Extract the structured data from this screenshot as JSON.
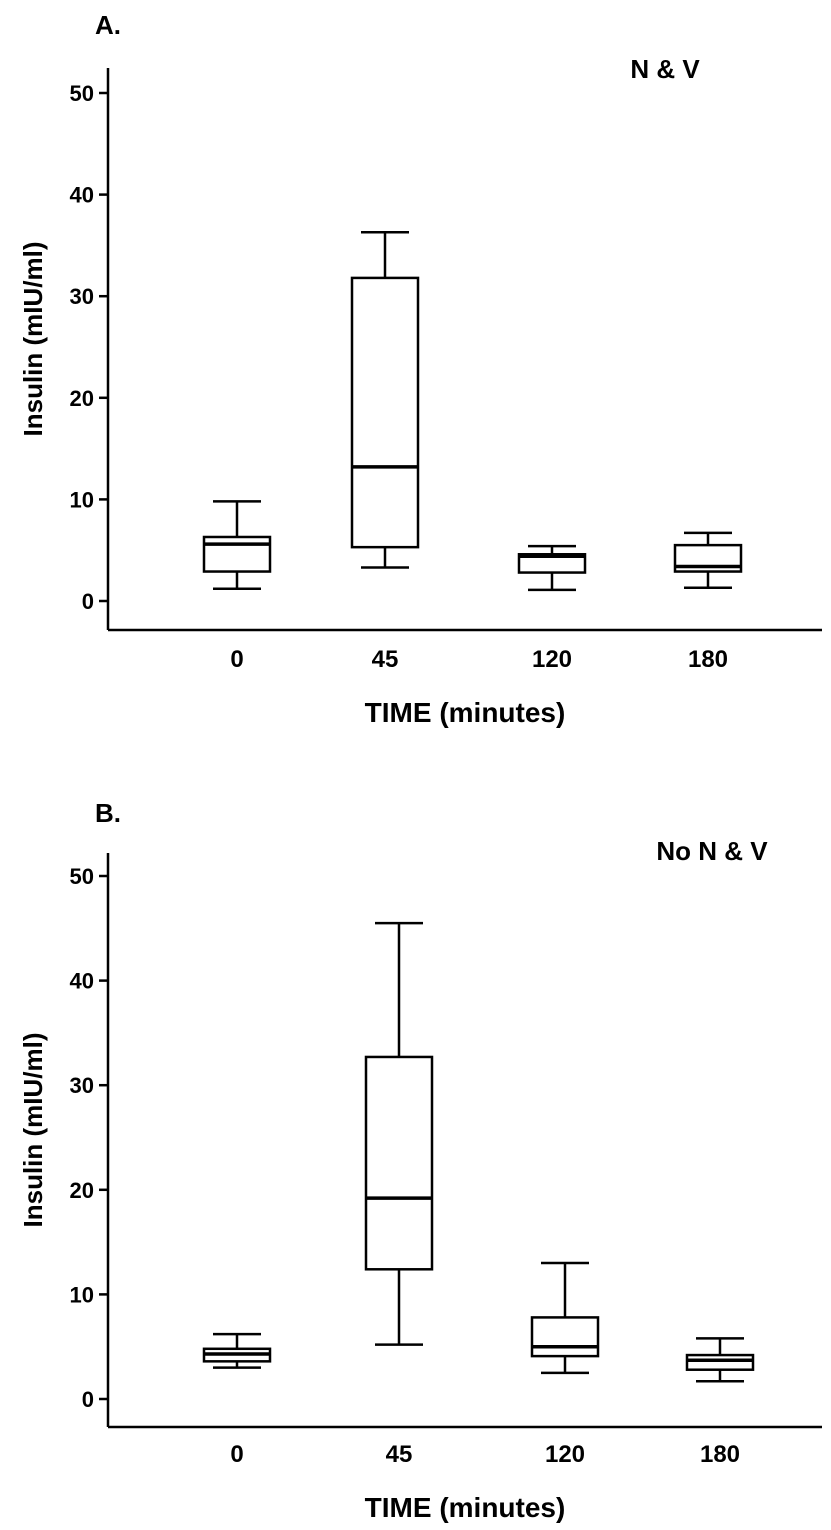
{
  "chart_data": [
    {
      "type": "box",
      "panel": "A.",
      "annotation": "N & V",
      "xlabel": "TIME (minutes)",
      "ylabel": "Insulin (mIU/ml)",
      "ylim": [
        -3,
        52.5
      ],
      "yticks": [
        0,
        10,
        20,
        30,
        40,
        50
      ],
      "categories": [
        "0",
        "45",
        "120",
        "180"
      ],
      "boxes": [
        {
          "min": 1.2,
          "q1": 2.9,
          "median": 5.6,
          "q3": 6.3,
          "max": 9.8
        },
        {
          "min": 3.3,
          "q1": 5.3,
          "median": 13.2,
          "q3": 31.8,
          "max": 36.3
        },
        {
          "min": 1.1,
          "q1": 2.8,
          "median": 4.4,
          "q3": 4.6,
          "max": 5.4
        },
        {
          "min": 1.3,
          "q1": 2.9,
          "median": 3.4,
          "q3": 5.5,
          "max": 6.7
        }
      ]
    },
    {
      "type": "box",
      "panel": "B.",
      "annotation": "No N & V",
      "xlabel": "TIME (minutes)",
      "ylabel": "Insulin (mIU/ml)",
      "ylim": [
        -2.5,
        52.5
      ],
      "yticks": [
        0,
        10,
        20,
        30,
        40,
        50
      ],
      "categories": [
        "0",
        "45",
        "120",
        "180"
      ],
      "boxes": [
        {
          "min": 3.0,
          "q1": 3.6,
          "median": 4.3,
          "q3": 4.8,
          "max": 6.2
        },
        {
          "min": 5.2,
          "q1": 12.4,
          "median": 19.2,
          "q3": 32.7,
          "max": 45.5
        },
        {
          "min": 2.5,
          "q1": 4.1,
          "median": 5.0,
          "q3": 7.8,
          "max": 13.0
        },
        {
          "min": 1.7,
          "q1": 2.8,
          "median": 3.7,
          "q3": 4.2,
          "max": 5.8
        }
      ]
    }
  ]
}
